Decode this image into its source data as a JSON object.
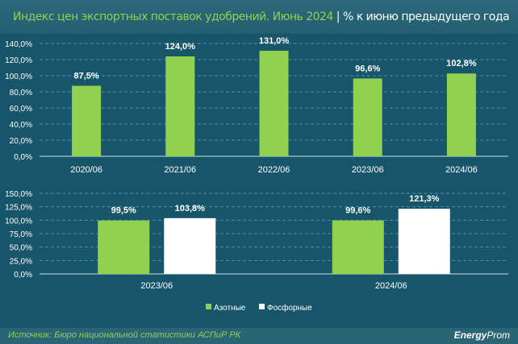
{
  "header": {
    "title": "Индекс цен экспортных поставок удобрений. Июнь 2024",
    "separator": "|",
    "subtitle": "% к июню предыдущего года"
  },
  "footer": {
    "source": "Источник: Бюро национальной статистики АСПиР РК",
    "logo_bold": "Energy",
    "logo_light": "Prom"
  },
  "colors": {
    "green": "#92d050",
    "white": "#ffffff",
    "background": "#17566a"
  },
  "chart_data": [
    {
      "type": "bar",
      "title": "",
      "categories": [
        "2020/06",
        "2021/06",
        "2022/06",
        "2023/06",
        "2024/06"
      ],
      "values": [
        87.5,
        124.0,
        131.0,
        96.6,
        102.8
      ],
      "value_labels": [
        "87,5%",
        "124,0%",
        "131,0%",
        "96,6%",
        "102,8%"
      ],
      "ylim": [
        0,
        140
      ],
      "yticks": [
        "0,0%",
        "20,0%",
        "40,0%",
        "60,0%",
        "80,0%",
        "100,0%",
        "120,0%",
        "140,0%"
      ],
      "grid": true
    },
    {
      "type": "bar",
      "title": "",
      "categories": [
        "2023/06",
        "2024/06"
      ],
      "series": [
        {
          "name": "Азотные",
          "values": [
            99.5,
            99.6
          ],
          "labels": [
            "99,5%",
            "99,6%"
          ]
        },
        {
          "name": "Фосфорные",
          "values": [
            103.8,
            121.3
          ],
          "labels": [
            "103,8%",
            "121,3%"
          ]
        }
      ],
      "ylim": [
        0,
        150
      ],
      "yticks": [
        "0,0%",
        "25,0%",
        "50,0%",
        "75,0%",
        "100,0%",
        "125,0%",
        "150,0%"
      ],
      "grid": true,
      "legend": "bottom-center"
    }
  ]
}
